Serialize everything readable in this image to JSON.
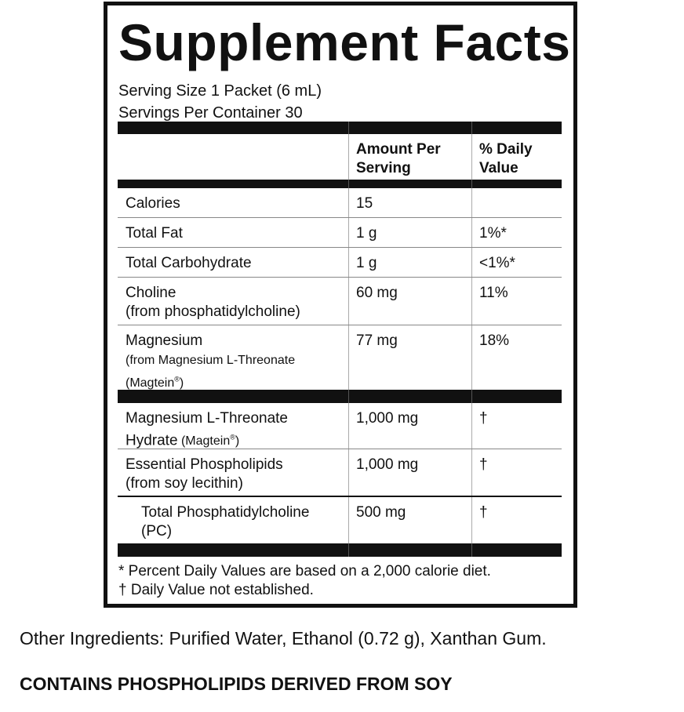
{
  "label": {
    "title": "Supplement Facts",
    "serving_size": "Serving Size 1 Packet (6 mL)",
    "servings_per_container": "Servings Per Container 30",
    "header": {
      "amount_line1": "Amount Per",
      "amount_line2": "Serving",
      "dv_line1": "% Daily",
      "dv_line2": "Value"
    },
    "rows": [
      {
        "name": "Calories",
        "amount": "15",
        "dv": ""
      },
      {
        "name": "Total Fat",
        "amount": "1 g",
        "dv": "1%*"
      },
      {
        "name": "Total Carbohydrate",
        "amount": "1 g",
        "dv": "<1%*"
      },
      {
        "name": "Choline",
        "sub": "(from phosphatidylcholine)",
        "amount": "60 mg",
        "dv": "11%"
      },
      {
        "name": "Magnesium",
        "sub": "(from Magnesium L-Threonate",
        "sub2": "(Magtein",
        "sub2_mark": "®",
        "sub2_end": ")",
        "amount": "77 mg",
        "dv": "18%"
      },
      {
        "name": "Magnesium L-Threonate",
        "name2": "Hydrate",
        "sub": " (Magtein",
        "sub_mark": "®",
        "sub_end": ")",
        "amount": "1,000 mg",
        "dv": "†"
      },
      {
        "name": "Essential Phospholipids",
        "sub": "(from soy lecithin)",
        "amount": "1,000 mg",
        "dv": "†"
      },
      {
        "name": "Total Phosphatidylcholine",
        "sub": "(PC)",
        "amount": "500 mg",
        "dv": "†"
      }
    ],
    "footnote1": "* Percent Daily Values are based on a 2,000 calorie diet.",
    "footnote2": "† Daily Value not established."
  },
  "other_ingredients": "Other Ingredients: Purified Water, Ethanol (0.72 g), Xanthan Gum.",
  "allergen": "CONTAINS PHOSPHOLIPIDS DERIVED FROM SOY"
}
